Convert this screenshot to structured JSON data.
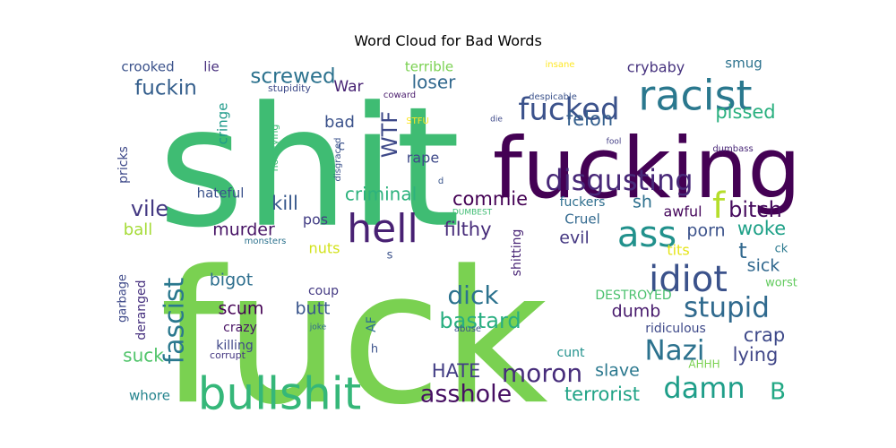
{
  "chart_data": {
    "type": "wordcloud",
    "title": "Word Cloud for Bad Words",
    "words": [
      {
        "text": "fuck",
        "size": 10,
        "color": "#7ad151"
      },
      {
        "text": "shit",
        "size": 9.5,
        "color": "#3fbc73"
      },
      {
        "text": "fucking",
        "size": 7,
        "color": "#440154"
      },
      {
        "text": "bullshit",
        "size": 5,
        "color": "#35b779"
      },
      {
        "text": "racist",
        "size": 4.6,
        "color": "#2a788e"
      },
      {
        "text": "hell",
        "size": 4.3,
        "color": "#482173"
      },
      {
        "text": "ass",
        "size": 4.1,
        "color": "#21918c"
      },
      {
        "text": "idiot",
        "size": 4,
        "color": "#3b528b"
      },
      {
        "text": "f",
        "size": 4,
        "color": "#b5de2b"
      },
      {
        "text": "fucked",
        "size": 3.6,
        "color": "#3b528b"
      },
      {
        "text": "disgusting",
        "size": 3.4,
        "color": "#482878"
      },
      {
        "text": "damn",
        "size": 3.4,
        "color": "#1f9e89"
      },
      {
        "text": "fascist",
        "size": 3.2,
        "color": "#2a788e"
      },
      {
        "text": "Nazi",
        "size": 3.2,
        "color": "#2c728e"
      },
      {
        "text": "stupid",
        "size": 3.2,
        "color": "#306a8e"
      },
      {
        "text": "moron",
        "size": 3.1,
        "color": "#472d7b"
      },
      {
        "text": "asshole",
        "size": 3,
        "color": "#471063"
      },
      {
        "text": "dick",
        "size": 3,
        "color": "#2c728e"
      },
      {
        "text": "B",
        "size": 2.7,
        "color": "#22a884"
      },
      {
        "text": "WTF",
        "size": 2.6,
        "color": "#3e4989"
      },
      {
        "text": "vile",
        "size": 2.6,
        "color": "#443983"
      },
      {
        "text": "bastard",
        "size": 2.5,
        "color": "#28ae80"
      },
      {
        "text": "t",
        "size": 2.5,
        "color": "#31688e"
      },
      {
        "text": "bitch",
        "size": 2.4,
        "color": "#460b5e"
      },
      {
        "text": "screwed",
        "size": 2.4,
        "color": "#2c728e"
      },
      {
        "text": "fuckin",
        "size": 2.4,
        "color": "#355f8d"
      },
      {
        "text": "crap",
        "size": 2.3,
        "color": "#3e4989"
      },
      {
        "text": "terrorist",
        "size": 2.2,
        "color": "#20a386"
      },
      {
        "text": "HATE",
        "size": 2.2,
        "color": "#433e85"
      },
      {
        "text": "commie",
        "size": 2.2,
        "color": "#440154"
      },
      {
        "text": "kill",
        "size": 2.2,
        "color": "#38588c"
      },
      {
        "text": "pissed",
        "size": 2.2,
        "color": "#2ab07f"
      },
      {
        "text": "felon",
        "size": 2.2,
        "color": "#355f8d"
      },
      {
        "text": "lying",
        "size": 2.2,
        "color": "#404688"
      },
      {
        "text": "woke",
        "size": 2.2,
        "color": "#1fa188"
      },
      {
        "text": "filthy",
        "size": 2.2,
        "color": "#472c7a"
      },
      {
        "text": "suck",
        "size": 2.1,
        "color": "#50c46a"
      },
      {
        "text": "criminal",
        "size": 2.1,
        "color": "#2db27d"
      },
      {
        "text": "loser",
        "size": 2.1,
        "color": "#31688e"
      },
      {
        "text": "sh",
        "size": 2,
        "color": "#2d708e"
      },
      {
        "text": "murder",
        "size": 2,
        "color": "#471365"
      },
      {
        "text": "dumb",
        "size": 2,
        "color": "#481b6d"
      },
      {
        "text": "scum",
        "size": 2,
        "color": "#440154"
      },
      {
        "text": "butt",
        "size": 2,
        "color": "#39558c"
      },
      {
        "text": "bigot",
        "size": 2,
        "color": "#2e6f8e"
      },
      {
        "text": "evil",
        "size": 2,
        "color": "#453882"
      },
      {
        "text": "porn",
        "size": 2,
        "color": "#3b528b"
      },
      {
        "text": "sick",
        "size": 2,
        "color": "#31688e"
      },
      {
        "text": "slave",
        "size": 2,
        "color": "#2a788e"
      },
      {
        "text": "ball",
        "size": 1.9,
        "color": "#a5db36"
      },
      {
        "text": "bad",
        "size": 1.9,
        "color": "#3b528b"
      },
      {
        "text": "crybaby",
        "size": 1.8,
        "color": "#46327e"
      },
      {
        "text": "awful",
        "size": 1.8,
        "color": "#46085c"
      },
      {
        "text": "War",
        "size": 1.8,
        "color": "#482374"
      },
      {
        "text": "pos",
        "size": 1.8,
        "color": "#433e85"
      },
      {
        "text": "nuts",
        "size": 1.8,
        "color": "#d2e21b"
      },
      {
        "text": "tits",
        "size": 1.8,
        "color": "#e5e419"
      },
      {
        "text": "rape",
        "size": 1.8,
        "color": "#3e4989"
      },
      {
        "text": "Cruel",
        "size": 1.7,
        "color": "#31688e"
      },
      {
        "text": "whore",
        "size": 1.7,
        "color": "#25848e"
      },
      {
        "text": "terrible",
        "size": 1.7,
        "color": "#7ad151"
      },
      {
        "text": "hateful",
        "size": 1.7,
        "color": "#3b528b"
      },
      {
        "text": "cringe",
        "size": 1.7,
        "color": "#1f9a8a"
      },
      {
        "text": "crooked",
        "size": 1.7,
        "color": "#3b528b"
      },
      {
        "text": "lie",
        "size": 1.7,
        "color": "#472f7d"
      },
      {
        "text": "smug",
        "size": 1.6,
        "color": "#2c728e"
      },
      {
        "text": "killing",
        "size": 1.6,
        "color": "#3f4788"
      },
      {
        "text": "coup",
        "size": 1.6,
        "color": "#443a83"
      },
      {
        "text": "crazy",
        "size": 1.6,
        "color": "#471164"
      },
      {
        "text": "pricks",
        "size": 1.6,
        "color": "#3e4989"
      },
      {
        "text": "deranged",
        "size": 1.6,
        "color": "#46307e"
      },
      {
        "text": "garbage",
        "size": 1.5,
        "color": "#3e4989"
      },
      {
        "text": "shitting",
        "size": 1.6,
        "color": "#482475"
      },
      {
        "text": "ridiculous",
        "size": 1.6,
        "color": "#3e4989"
      },
      {
        "text": "cunt",
        "size": 1.5,
        "color": "#21918c"
      },
      {
        "text": "DESTROYED",
        "size": 1.5,
        "color": "#4ac16d"
      },
      {
        "text": "worst",
        "size": 1.5,
        "color": "#63cb5f"
      },
      {
        "text": "fuckers",
        "size": 1.5,
        "color": "#2e6e8e"
      },
      {
        "text": "c",
        "size": 1.6,
        "color": "#3b528b"
      },
      {
        "text": "ck",
        "size": 1.5,
        "color": "#2a788e"
      },
      {
        "text": "AF",
        "size": 1.5,
        "color": "#2d708e"
      },
      {
        "text": "AHHH",
        "size": 1.4,
        "color": "#7ad151"
      },
      {
        "text": "stupidity",
        "size": 1.3,
        "color": "#3e4a89"
      },
      {
        "text": "horrifying",
        "size": 1.3,
        "color": "#3dbc74"
      },
      {
        "text": "corrupt",
        "size": 1.3,
        "color": "#453781"
      },
      {
        "text": "disgraced",
        "size": 1.2,
        "color": "#3b528b"
      },
      {
        "text": "coward",
        "size": 1.2,
        "color": "#481a6c"
      },
      {
        "text": "despicable",
        "size": 1.2,
        "color": "#3b528b"
      },
      {
        "text": "dumbass",
        "size": 1.2,
        "color": "#482677"
      },
      {
        "text": "STFU",
        "size": 1.2,
        "color": "#fde725"
      },
      {
        "text": "insane",
        "size": 1.2,
        "color": "#fde725"
      },
      {
        "text": "monsters",
        "size": 1.2,
        "color": "#2c728e"
      },
      {
        "text": "DUMBEST",
        "size": 1.1,
        "color": "#3fbc73"
      },
      {
        "text": "joke",
        "size": 1.1,
        "color": "#306a8e"
      },
      {
        "text": "abuse",
        "size": 1.2,
        "color": "#3b528b"
      },
      {
        "text": "fool",
        "size": 1.1,
        "color": "#433e85"
      },
      {
        "text": "die",
        "size": 1.1,
        "color": "#3e4989"
      },
      {
        "text": "d",
        "size": 1.1,
        "color": "#39558c"
      },
      {
        "text": "s",
        "size": 1.5,
        "color": "#3b528b"
      },
      {
        "text": "h",
        "size": 1.5,
        "color": "#3b528b"
      }
    ]
  }
}
